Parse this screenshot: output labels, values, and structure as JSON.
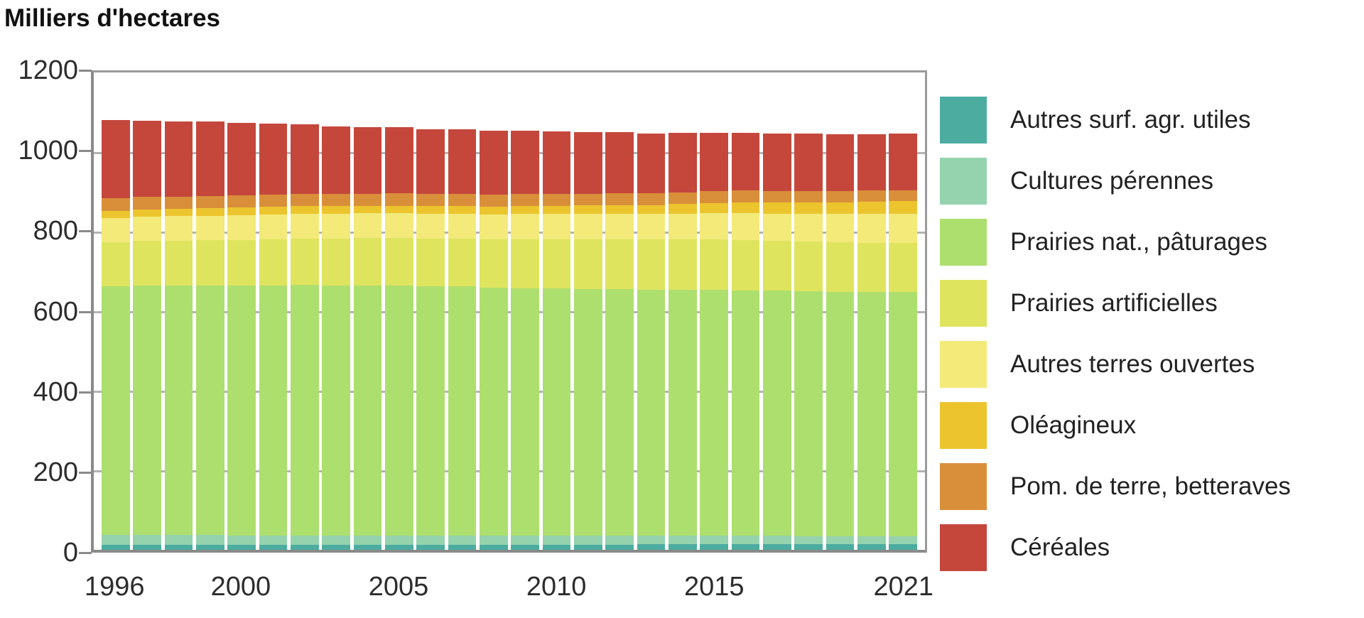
{
  "title": "Milliers d'hectares",
  "y_axis": {
    "ticks": [
      0,
      200,
      400,
      600,
      800,
      1000,
      1200
    ],
    "max": 1200
  },
  "x_axis": {
    "tick_years": [
      1996,
      2000,
      2005,
      2010,
      2015,
      2021
    ]
  },
  "colors": {
    "grid": "#b3b3b3",
    "axis": "#8a8a8a",
    "tick_text": "#2d2d2d"
  },
  "chart_data": {
    "type": "bar",
    "stacked": true,
    "title": "Milliers d'hectares",
    "ylabel": "Milliers d'hectares",
    "ylim": [
      0,
      1200
    ],
    "grid": true,
    "legend_position": "right",
    "x": [
      1996,
      1997,
      1998,
      1999,
      2000,
      2001,
      2002,
      2003,
      2004,
      2005,
      2006,
      2007,
      2008,
      2009,
      2010,
      2011,
      2012,
      2013,
      2014,
      2015,
      2016,
      2017,
      2018,
      2019,
      2020,
      2021
    ],
    "x_tick_labels": [
      "1996",
      "2000",
      "2005",
      "2010",
      "2015",
      "2021"
    ],
    "series": [
      {
        "name": "Autres surf. agr. utiles",
        "color": "#4caca0",
        "values": [
          12,
          12,
          12,
          12,
          12,
          12,
          12,
          12,
          12,
          12,
          12,
          13,
          13,
          13,
          13,
          13,
          13,
          14,
          14,
          14,
          14,
          14,
          14,
          14,
          14,
          14
        ]
      },
      {
        "name": "Cultures pérennes",
        "color": "#95d2ae",
        "values": [
          26,
          26,
          25,
          25,
          24,
          24,
          24,
          23,
          23,
          23,
          23,
          23,
          22,
          22,
          22,
          22,
          22,
          21,
          21,
          21,
          21,
          21,
          20,
          20,
          20,
          20
        ]
      },
      {
        "name": "Prairies nat., pâturages",
        "color": "#addf6e",
        "values": [
          624,
          626,
          627,
          627,
          628,
          629,
          630,
          630,
          630,
          630,
          628,
          626,
          624,
          623,
          622,
          621,
          620,
          619,
          618,
          618,
          617,
          616,
          616,
          615,
          614,
          614
        ]
      },
      {
        "name": "Prairies artificielles",
        "color": "#dfe45f",
        "values": [
          111,
          112,
          113,
          114,
          115,
          116,
          117,
          118,
          119,
          119,
          120,
          121,
          122,
          123,
          124,
          125,
          126,
          126,
          127,
          127,
          127,
          126,
          125,
          125,
          124,
          124
        ]
      },
      {
        "name": "Autres terres ouvertes",
        "color": "#f3ea7a",
        "values": [
          61,
          61,
          62,
          62,
          62,
          62,
          62,
          62,
          62,
          62,
          62,
          62,
          62,
          63,
          63,
          63,
          64,
          64,
          65,
          66,
          67,
          68,
          69,
          70,
          72,
          73
        ]
      },
      {
        "name": "Oléagineux",
        "color": "#ecc52e",
        "values": [
          18,
          18,
          18,
          19,
          19,
          19,
          19,
          19,
          19,
          19,
          19,
          20,
          20,
          21,
          21,
          22,
          22,
          23,
          24,
          26,
          27,
          28,
          29,
          30,
          31,
          32
        ]
      },
      {
        "name": "Pom. de terre, betteraves",
        "color": "#d98f3a",
        "values": [
          32,
          32,
          31,
          31,
          31,
          31,
          31,
          30,
          30,
          32,
          31,
          30,
          30,
          29,
          29,
          29,
          29,
          29,
          30,
          30,
          30,
          29,
          29,
          28,
          28,
          27
        ]
      },
      {
        "name": "Céréales",
        "color": "#c5473c",
        "values": [
          196,
          192,
          189,
          186,
          182,
          178,
          174,
          170,
          167,
          165,
          163,
          162,
          160,
          159,
          158,
          156,
          154,
          151,
          149,
          146,
          145,
          144,
          144,
          143,
          142,
          142
        ]
      }
    ]
  }
}
